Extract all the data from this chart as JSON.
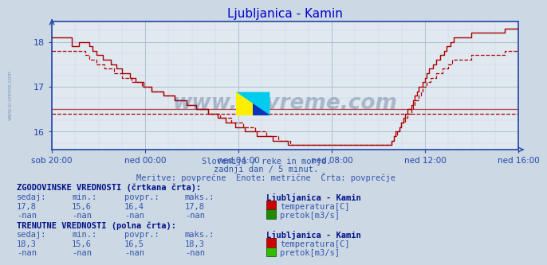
{
  "title": "Ljubljanica - Kamin",
  "title_color": "#0000cc",
  "bg_color": "#ccd8e4",
  "plot_bg_color": "#e0e8f0",
  "grid_major_color": "#aab8cc",
  "grid_minor_color": "#c8d4e0",
  "axis_color": "#2244aa",
  "text_color": "#3355aa",
  "bold_color": "#001188",
  "subtitle1": "Slovenija / reke in morje.",
  "subtitle2": "zadnji dan / 5 minut.",
  "subtitle3": "Meritve: povprečne  Enote: metrične  Črta: povprečje",
  "xlabel_ticks": [
    "sob 20:00",
    "ned 00:00",
    "ned 04:00",
    "ned 08:00",
    "ned 12:00",
    "ned 16:00"
  ],
  "ylim_min": 15.6,
  "ylim_max": 18.45,
  "yticks": [
    16,
    17,
    18
  ],
  "avg_hist": 16.4,
  "avg_curr": 16.5,
  "watermark": "www.si-vreme.com",
  "watermark_color": "#1a3a6a",
  "hist_label": "ZGODOVINSKE VREDNOSTI (črtkana črta):",
  "curr_label": "TRENUTNE VREDNOSTI (polna črta):",
  "col_headers": [
    "sedaj:",
    "min.:",
    "povpr.:",
    "maks.:"
  ],
  "hist_temp_vals": [
    "17,8",
    "15,6",
    "16,4",
    "17,8"
  ],
  "hist_pretok_vals": [
    "-nan",
    "-nan",
    "-nan",
    "-nan"
  ],
  "curr_temp_vals": [
    "18,3",
    "15,6",
    "16,5",
    "18,3"
  ],
  "curr_pretok_vals": [
    "-nan",
    "-nan",
    "-nan",
    "-nan"
  ],
  "station_label": "Ljubljanica - Kamin",
  "temp_label": "temperatura[C]",
  "pretok_label": "pretok[m3/s]",
  "line_color": "#aa0000",
  "temp_icon_color": "#cc0000",
  "pretok_icon_color_hist": "#228800",
  "pretok_icon_color_curr": "#33bb00",
  "n_points": 240,
  "sidebar_text": "www.si-vreme.com",
  "sidebar_color": "#7799bb"
}
